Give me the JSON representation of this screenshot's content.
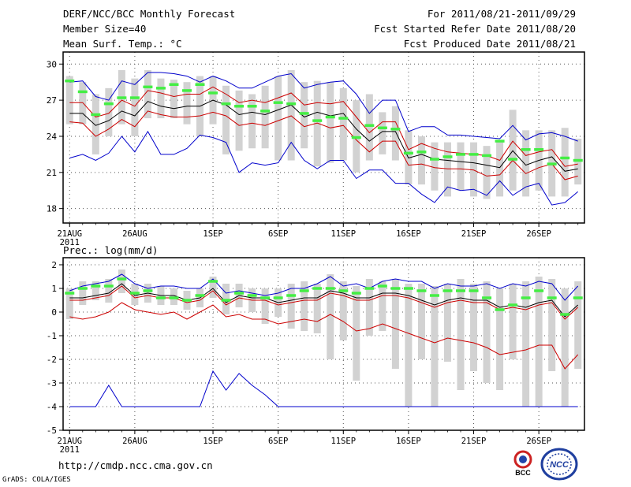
{
  "header": {
    "title": "DERF/NCC/BCC Monthly Forecast",
    "member_size": "Member Size=40",
    "variable": "Mean Surf. Temp.: °C",
    "period": "For 2011/08/21-2011/09/29",
    "start_date": "Fcst Started Refer Date 2011/08/20",
    "produced_date": "Fcst Produced Date 2011/08/21"
  },
  "precip_label": "Prec.: log(mm/d)",
  "footer": {
    "url": "http://cmdp.ncc.cma.gov.cn",
    "credit": "GrADS: COLA/IGES"
  },
  "logos": {
    "bcc": "BCC",
    "ncc": "NCC"
  },
  "colors": {
    "blue": "#0000cc",
    "red": "#cc0000",
    "mean": "#000000",
    "green": "#44ee44",
    "box": "#d2d2d2"
  },
  "chart_data": [
    {
      "type": "line",
      "name": "temperature",
      "title": "Mean Surf. Temp.: °C",
      "ylim": [
        16.8,
        31
      ],
      "yticks": [
        18,
        21,
        24,
        27,
        30
      ],
      "xlim": [
        0.5,
        40.5
      ],
      "xticks": [
        {
          "day": 1,
          "label": "21AUG"
        },
        {
          "day": 6,
          "label": "26AUG"
        },
        {
          "day": 12,
          "label": "1SEP"
        },
        {
          "day": 17,
          "label": "6SEP"
        },
        {
          "day": 22,
          "label": "11SEP"
        },
        {
          "day": 27,
          "label": "16SEP"
        },
        {
          "day": 32,
          "label": "21SEP"
        },
        {
          "day": 37,
          "label": "26SEP"
        }
      ],
      "year_label": "2011",
      "series": [
        {
          "name": "max",
          "color": "#0000cc",
          "values": [
            28.5,
            28.6,
            27.3,
            27.0,
            28.6,
            28.3,
            29.3,
            29.3,
            29.2,
            29.0,
            28.5,
            29.0,
            28.6,
            28.0,
            28.0,
            28.5,
            29.0,
            29.2,
            28.0,
            28.3,
            28.5,
            28.6,
            27.5,
            25.9,
            27.0,
            27.0,
            24.4,
            24.8,
            24.8,
            24.1,
            24.1,
            24.0,
            23.9,
            23.8,
            24.9,
            23.7,
            24.2,
            24.3,
            24.0,
            23.6
          ]
        },
        {
          "name": "upper",
          "color": "#cc0000",
          "values": [
            26.8,
            26.8,
            25.6,
            25.9,
            27.0,
            26.5,
            27.8,
            27.6,
            27.3,
            27.5,
            27.5,
            28.1,
            27.5,
            26.8,
            27.0,
            26.8,
            27.2,
            27.6,
            26.6,
            26.8,
            26.7,
            26.9,
            25.6,
            24.3,
            25.2,
            25.2,
            22.9,
            23.4,
            23.0,
            22.7,
            22.6,
            22.5,
            22.4,
            22.0,
            23.6,
            22.4,
            22.7,
            22.9,
            21.5,
            21.7
          ]
        },
        {
          "name": "mean",
          "color": "#000000",
          "values": [
            25.9,
            25.9,
            24.9,
            25.3,
            26.1,
            25.7,
            26.9,
            26.5,
            26.3,
            26.5,
            26.5,
            27.0,
            26.6,
            25.8,
            26.0,
            25.8,
            26.2,
            26.6,
            25.6,
            26.0,
            25.7,
            25.9,
            24.6,
            23.6,
            24.4,
            24.4,
            22.2,
            22.5,
            22.1,
            22.0,
            21.9,
            21.8,
            21.6,
            21.4,
            22.8,
            21.6,
            22.0,
            22.3,
            21.1,
            21.3
          ]
        },
        {
          "name": "lower",
          "color": "#cc0000",
          "values": [
            25.2,
            25.1,
            24.0,
            24.6,
            25.4,
            24.8,
            26.1,
            25.8,
            25.6,
            25.6,
            25.7,
            26.0,
            25.7,
            24.9,
            25.1,
            24.9,
            25.3,
            25.7,
            24.8,
            25.1,
            24.7,
            24.9,
            23.7,
            22.7,
            23.6,
            23.6,
            21.6,
            21.7,
            21.4,
            21.3,
            21.3,
            21.2,
            20.7,
            20.8,
            22.0,
            20.9,
            21.4,
            21.7,
            20.4,
            20.7
          ]
        },
        {
          "name": "min",
          "color": "#0000cc",
          "values": [
            22.2,
            22.5,
            22.0,
            22.6,
            24.0,
            22.7,
            24.4,
            22.5,
            22.5,
            23.0,
            24.1,
            23.9,
            23.5,
            21.0,
            21.8,
            21.6,
            21.8,
            23.5,
            22.0,
            21.3,
            22.0,
            22.0,
            20.5,
            21.2,
            21.2,
            20.1,
            20.1,
            19.2,
            18.5,
            19.8,
            19.5,
            19.6,
            19.1,
            20.3,
            19.1,
            19.8,
            20.1,
            18.3,
            18.5,
            19.4
          ]
        },
        {
          "name": "obs",
          "color": "#44ee44",
          "values": [
            28.6,
            27.7,
            25.8,
            26.7,
            27.2,
            27.2,
            28.1,
            28.0,
            28.3,
            27.8,
            28.3,
            27.6,
            26.7,
            26.5,
            26.5,
            26.1,
            26.8,
            26.7,
            25.9,
            25.3,
            25.6,
            25.5,
            23.9,
            24.9,
            24.7,
            24.6,
            22.6,
            22.7,
            22.1,
            22.3,
            22.5,
            22.5,
            22.4,
            23.6,
            22.1,
            22.9,
            22.9,
            21.7,
            22.2,
            22.0
          ]
        }
      ],
      "boxes": {
        "top": [
          29.0,
          28.5,
          27.5,
          28.0,
          29.5,
          28.8,
          29.5,
          28.8,
          28.7,
          28.5,
          29.0,
          29.0,
          28.2,
          27.8,
          27.5,
          28.2,
          29.0,
          29.5,
          28.5,
          28.6,
          28.5,
          28.0,
          27.0,
          27.5,
          26.0,
          26.5,
          24.5,
          24.0,
          23.5,
          23.5,
          23.5,
          23.5,
          23.2,
          23.5,
          26.2,
          24.5,
          24.5,
          24.5,
          24.7,
          23.8
        ],
        "bottom": [
          25.0,
          25.0,
          22.5,
          24.0,
          25.0,
          24.0,
          25.5,
          25.5,
          25.5,
          25.0,
          24.0,
          25.0,
          22.5,
          22.8,
          23.0,
          23.0,
          22.0,
          22.0,
          23.0,
          21.5,
          21.8,
          22.0,
          21.0,
          22.0,
          22.5,
          22.0,
          20.0,
          20.0,
          19.5,
          19.0,
          19.5,
          19.0,
          18.8,
          19.0,
          19.5,
          19.0,
          19.5,
          19.0,
          19.0,
          20.0
        ]
      }
    },
    {
      "type": "line",
      "name": "precipitation",
      "title": "Prec.: log(mm/d)",
      "ylim": [
        -5,
        2.3
      ],
      "yticks": [
        -5,
        -4,
        -3,
        -2,
        -1,
        0,
        1,
        2
      ],
      "xlim": [
        0.5,
        40.5
      ],
      "xticks": [
        {
          "day": 1,
          "label": "21AUG"
        },
        {
          "day": 6,
          "label": "26AUG"
        },
        {
          "day": 12,
          "label": "1SEP"
        },
        {
          "day": 17,
          "label": "6SEP"
        },
        {
          "day": 22,
          "label": "11SEP"
        },
        {
          "day": 27,
          "label": "16SEP"
        },
        {
          "day": 32,
          "label": "21SEP"
        },
        {
          "day": 37,
          "label": "26SEP"
        }
      ],
      "year_label": "2011",
      "series": [
        {
          "name": "max",
          "color": "#0000cc",
          "values": [
            0.9,
            1.1,
            1.2,
            1.3,
            1.6,
            1.2,
            1.0,
            1.1,
            1.1,
            1.0,
            1.0,
            1.4,
            0.8,
            0.9,
            0.8,
            0.7,
            0.8,
            1.0,
            1.0,
            1.2,
            1.5,
            1.1,
            1.2,
            1.0,
            1.3,
            1.4,
            1.3,
            1.3,
            1.0,
            1.2,
            1.1,
            1.1,
            1.2,
            1.0,
            1.2,
            1.1,
            1.3,
            1.2,
            0.5,
            1.1
          ]
        },
        {
          "name": "upper",
          "color": "#000000",
          "values": [
            0.6,
            0.6,
            0.7,
            0.8,
            1.2,
            0.7,
            0.8,
            0.7,
            0.7,
            0.5,
            0.6,
            1.0,
            0.4,
            0.7,
            0.6,
            0.6,
            0.4,
            0.5,
            0.6,
            0.6,
            0.9,
            0.8,
            0.6,
            0.6,
            0.8,
            0.8,
            0.7,
            0.5,
            0.3,
            0.5,
            0.6,
            0.5,
            0.5,
            0.2,
            0.3,
            0.2,
            0.4,
            0.5,
            -0.2,
            0.3
          ]
        },
        {
          "name": "mean",
          "color": "#cc0000",
          "values": [
            0.5,
            0.5,
            0.6,
            0.7,
            1.1,
            0.6,
            0.7,
            0.6,
            0.6,
            0.4,
            0.5,
            0.9,
            0.3,
            0.6,
            0.5,
            0.5,
            0.3,
            0.4,
            0.5,
            0.5,
            0.8,
            0.7,
            0.5,
            0.5,
            0.7,
            0.7,
            0.6,
            0.4,
            0.2,
            0.4,
            0.5,
            0.4,
            0.4,
            0.1,
            0.2,
            0.1,
            0.3,
            0.4,
            -0.3,
            0.2
          ]
        },
        {
          "name": "lower",
          "color": "#cc0000",
          "values": [
            -0.2,
            -0.3,
            -0.2,
            0.0,
            0.4,
            0.1,
            0.0,
            -0.1,
            0.0,
            -0.3,
            0.0,
            0.3,
            -0.2,
            -0.1,
            -0.3,
            -0.3,
            -0.5,
            -0.4,
            -0.3,
            -0.4,
            -0.1,
            -0.4,
            -0.8,
            -0.7,
            -0.5,
            -0.7,
            -0.9,
            -1.1,
            -1.3,
            -1.1,
            -1.2,
            -1.3,
            -1.5,
            -1.8,
            -1.7,
            -1.6,
            -1.4,
            -1.4,
            -2.4,
            -1.8
          ]
        },
        {
          "name": "min",
          "color": "#0000cc",
          "values": [
            -4,
            -4,
            -4,
            -3.1,
            -4,
            -4,
            -4,
            -4,
            -4,
            -4,
            -4,
            -2.5,
            -3.3,
            -2.6,
            -3.1,
            -3.5,
            -4,
            -4,
            -4,
            -4,
            -4,
            -4,
            -4,
            -4,
            -4,
            -4,
            -4,
            -4,
            -4,
            -4,
            -4,
            -4,
            -4,
            -4,
            -4,
            -4,
            -4,
            -4,
            -4,
            -4
          ]
        },
        {
          "name": "obs",
          "color": "#44ee44",
          "values": [
            0.8,
            1.0,
            1.1,
            1.1,
            1.4,
            0.8,
            0.9,
            0.6,
            0.6,
            0.5,
            0.7,
            1.3,
            0.5,
            0.8,
            0.7,
            0.6,
            0.6,
            0.7,
            0.9,
            1.0,
            1.0,
            0.9,
            0.8,
            1.0,
            1.1,
            1.0,
            1.0,
            0.9,
            0.7,
            0.9,
            0.9,
            0.9,
            0.6,
            0.1,
            0.3,
            0.6,
            0.9,
            0.6,
            -0.1,
            0.6
          ]
        }
      ],
      "boxes": {
        "top": [
          1.0,
          1.3,
          1.3,
          1.4,
          1.8,
          1.2,
          1.2,
          1.1,
          1.0,
          0.9,
          1.0,
          1.5,
          1.2,
          1.2,
          1.0,
          1.0,
          1.0,
          1.2,
          1.3,
          1.2,
          1.6,
          1.3,
          1.1,
          1.4,
          1.3,
          1.4,
          1.2,
          1.2,
          1.1,
          1.2,
          1.4,
          1.2,
          1.3,
          1.0,
          1.2,
          1.3,
          1.5,
          1.4,
          1.0,
          1.3
        ],
        "bottom": [
          -0.3,
          0.3,
          0.5,
          0.4,
          0.8,
          0.3,
          0.4,
          0.3,
          0.3,
          0.1,
          0.2,
          0.6,
          -0.1,
          0.2,
          0.0,
          -0.5,
          -0.2,
          -0.7,
          -0.8,
          -0.9,
          -2.0,
          -1.2,
          -2.9,
          -1.0,
          -0.8,
          -2.4,
          -4.0,
          -2.0,
          -4.0,
          -2.1,
          -3.3,
          -2.5,
          -3.0,
          -3.3,
          -2.0,
          -4.0,
          -4.0,
          -2.5,
          -4.0,
          -2.4
        ]
      }
    }
  ]
}
